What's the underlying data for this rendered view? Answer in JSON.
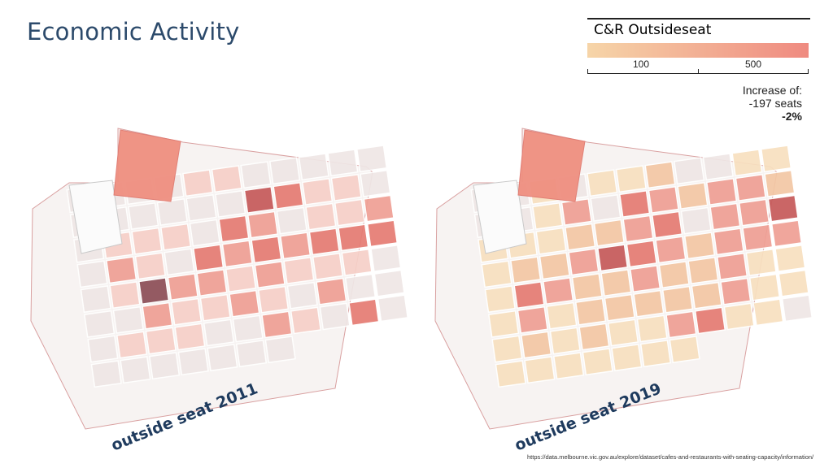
{
  "title": "Economic Activity",
  "legend": {
    "title": "C&R Outsideseat",
    "tick_labels": [
      "100",
      "500"
    ],
    "ramp_low_color": "#f6d5a8",
    "ramp_high_color": "#ef8a80"
  },
  "summary": {
    "label": "Increase of:",
    "seats": "-197 seats",
    "percent": "-2%"
  },
  "maps": [
    {
      "label": "outside seat 2011"
    },
    {
      "label": "outside seat 2019"
    }
  ],
  "source": "https://data.melbourne.vic.gov.au/explore/dataset/cafes-and-restaurants-with-seating-capacity/information/",
  "colors": {
    "title": "#2c4a6b",
    "map_label": "#1f3b5e",
    "boundary": "#d9a0a0"
  }
}
